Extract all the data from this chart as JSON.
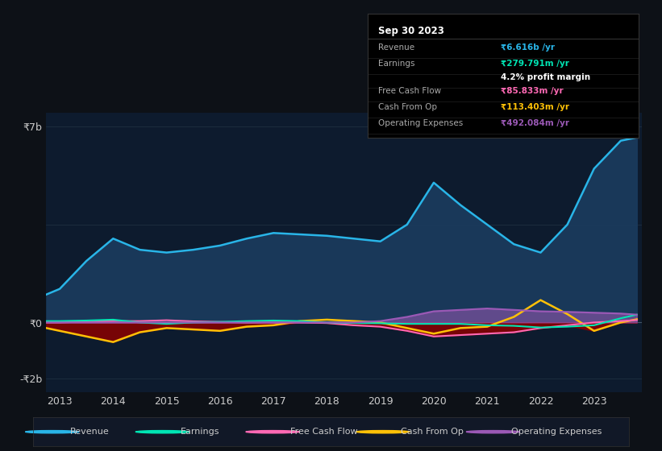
{
  "bg_color": "#0d1117",
  "chart_bg": "#0d1b2e",
  "ytick_labels": [
    "-₹2b",
    "₹0",
    "₹7b"
  ],
  "revenue_color": "#29b5e8",
  "earnings_color": "#00e5b4",
  "free_cash_flow_color": "#ff69b4",
  "cash_from_op_color": "#ffc107",
  "operating_expenses_color": "#9b59b6",
  "revenue_fill": "#1a3a5c",
  "table_title": "Sep 30 2023",
  "table_revenue_label": "Revenue",
  "table_revenue_value": "₹6.616b /yr",
  "table_earnings_label": "Earnings",
  "table_earnings_value": "₹279.791m /yr",
  "table_margin": "4.2% profit margin",
  "table_fcf_label": "Free Cash Flow",
  "table_fcf_value": "₹85.833m /yr",
  "table_cashop_label": "Cash From Op",
  "table_cashop_value": "₹113.403m /yr",
  "table_opex_label": "Operating Expenses",
  "table_opex_value": "₹492.084m /yr",
  "legend_items": [
    "Revenue",
    "Earnings",
    "Free Cash Flow",
    "Cash From Op",
    "Operating Expenses"
  ]
}
